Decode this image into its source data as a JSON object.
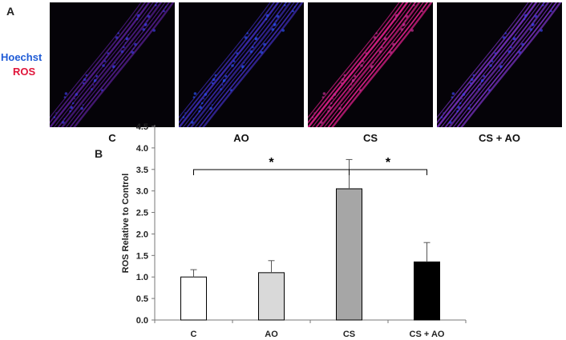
{
  "panel_a": {
    "letter": "A",
    "stain_labels": {
      "hoechst": "Hoechst",
      "ros": "ROS"
    },
    "colors": {
      "hoechst": "#1f5bd6",
      "ros": "#e0153a"
    },
    "images": [
      {
        "label": "C",
        "tint": "#7a2ad0",
        "intensity": 0.45,
        "nuclei": "#3a3ae0"
      },
      {
        "label": "AO",
        "tint": "#4a35e0",
        "intensity": 0.65,
        "nuclei": "#2a50f0"
      },
      {
        "label": "CS",
        "tint": "#e0208a",
        "intensity": 1.0,
        "nuclei": "#c03090"
      },
      {
        "label": "CS + AO",
        "tint": "#8a38e0",
        "intensity": 0.75,
        "nuclei": "#3a40e8"
      }
    ]
  },
  "panel_b": {
    "letter": "B"
  },
  "chart_data": {
    "type": "bar",
    "categories": [
      "C",
      "AO",
      "CS",
      "CS + AO"
    ],
    "values": [
      1.0,
      1.1,
      3.05,
      1.35
    ],
    "errors": [
      0.17,
      0.28,
      0.68,
      0.45
    ],
    "bar_colors": [
      "#ffffff",
      "#d9d9d9",
      "#a6a6a6",
      "#000000"
    ],
    "ylabel": "ROS Relative to Control",
    "xlabel": "",
    "ylim": [
      0,
      4.5
    ],
    "yticks": [
      "0.0",
      "0.5",
      "1.0",
      "1.5",
      "2.0",
      "2.5",
      "3.0",
      "3.5",
      "4.0",
      "4.5"
    ],
    "grid": false,
    "significance": [
      {
        "from": "C",
        "to": "CS",
        "label": "*"
      },
      {
        "from": "CS",
        "to": "CS + AO",
        "label": "*"
      }
    ]
  }
}
